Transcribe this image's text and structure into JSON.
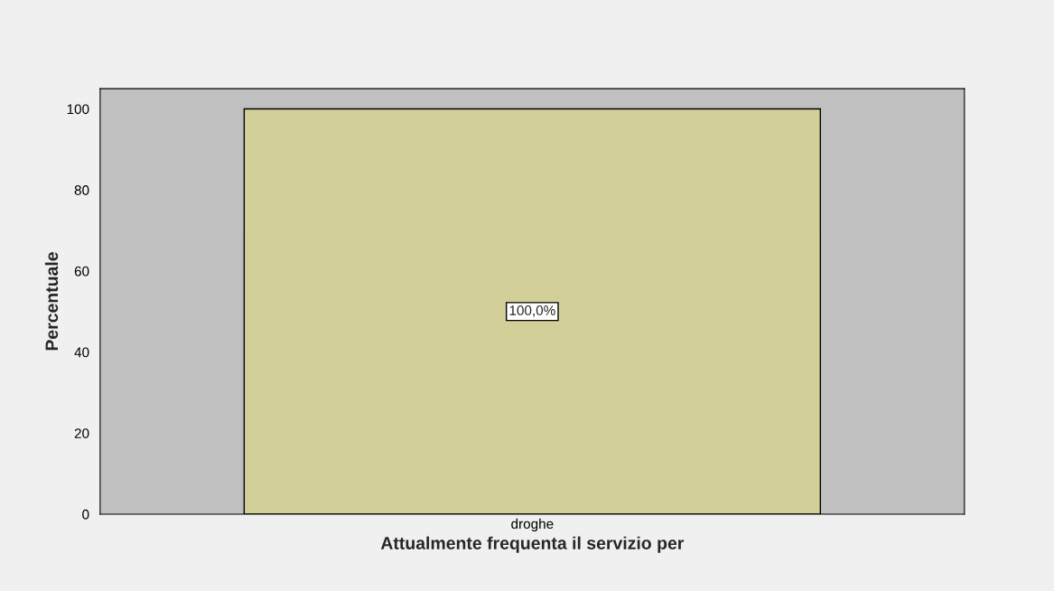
{
  "chart_data": {
    "type": "bar",
    "xlabel": "Attualmente frequenta il servizio per",
    "ylabel": "Percentuale",
    "categories": [
      "droghe"
    ],
    "values": [
      100
    ],
    "color": "#d3cf98",
    "value_labels": [
      "100,0%"
    ],
    "ylim": [
      0,
      105
    ],
    "yticks": [
      0,
      20,
      40,
      60,
      80,
      100
    ]
  }
}
